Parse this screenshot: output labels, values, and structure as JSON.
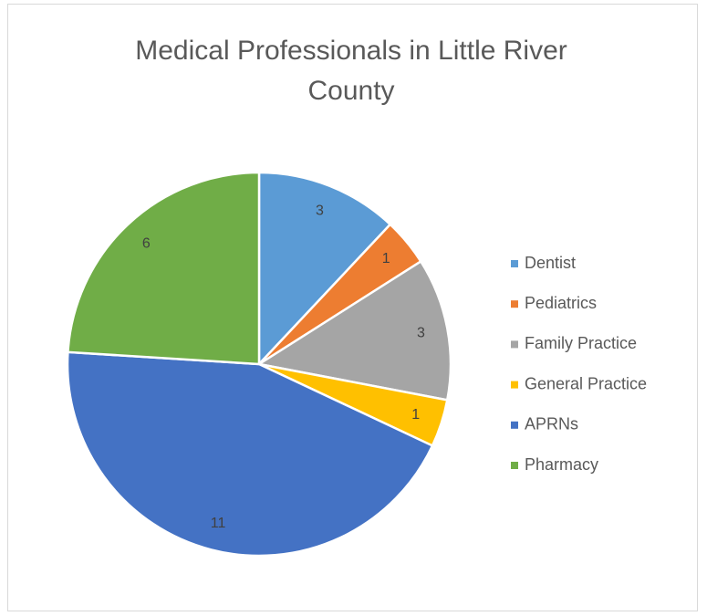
{
  "chart_data": {
    "type": "pie",
    "title": "Medical Professionals in Little River County",
    "categories": [
      "Dentist",
      "Pediatrics",
      "Family Practice",
      "General Practice",
      "APRNs",
      "Pharmacy"
    ],
    "values": [
      3,
      1,
      3,
      1,
      11,
      6
    ],
    "colors": [
      "#5b9bd5",
      "#ed7d31",
      "#a5a5a5",
      "#ffc000",
      "#4472c4",
      "#70ad47"
    ],
    "legend": "right"
  }
}
